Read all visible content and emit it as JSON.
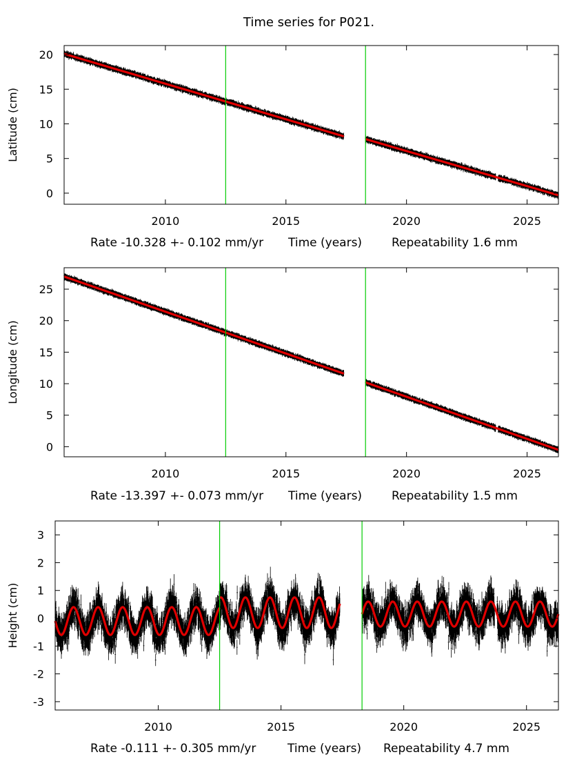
{
  "title": "Time series for P021.",
  "colors": {
    "data": "#000000",
    "model": "#e00000",
    "breaks": "#00cc00",
    "frame": "#000000"
  },
  "chart_data": [
    {
      "type": "scatter",
      "ylabel": "Latitude (cm)",
      "xlim": [
        2005.8,
        2026.3
      ],
      "ylim": [
        -1.6,
        21.3
      ],
      "xticks": [
        2010,
        2015,
        2020,
        2025
      ],
      "yticks": [
        0,
        5,
        10,
        15,
        20
      ],
      "x_caption": {
        "rate": "Rate -10.328 +- 0.102 mm/yr",
        "axis": "Time (years)",
        "repeatability": "Repeatability 1.6 mm"
      },
      "breaks": [
        2012.5,
        2018.3
      ],
      "gaps": [
        [
          2017.4,
          2018.25
        ],
        [
          2023.7,
          2023.8
        ]
      ],
      "model_segments": [
        {
          "x": [
            2005.8,
            2017.4
          ],
          "y": [
            20.1,
            8.2
          ]
        },
        {
          "x": [
            2018.3,
            2026.3
          ],
          "y": [
            7.8,
            -0.3
          ]
        }
      ],
      "series": [
        {
          "name": "Latitude",
          "scatter_cm": 0.3
        }
      ]
    },
    {
      "type": "scatter",
      "ylabel": "Longitude (cm)",
      "xlim": [
        2005.8,
        2026.3
      ],
      "ylim": [
        -1.6,
        28.4
      ],
      "xticks": [
        2010,
        2015,
        2020,
        2025
      ],
      "yticks": [
        0,
        5,
        10,
        15,
        20,
        25
      ],
      "x_caption": {
        "rate": "Rate -13.397 +- 0.073 mm/yr",
        "axis": "Time (years)",
        "repeatability": "Repeatability 1.5 mm"
      },
      "breaks": [
        2012.5,
        2018.3
      ],
      "gaps": [
        [
          2017.4,
          2018.25
        ],
        [
          2023.7,
          2023.8
        ]
      ],
      "model_segments": [
        {
          "x": [
            2005.8,
            2017.4
          ],
          "y": [
            27.0,
            11.6
          ]
        },
        {
          "x": [
            2018.3,
            2026.3
          ],
          "y": [
            10.2,
            -0.5
          ]
        }
      ],
      "series": [
        {
          "name": "Longitude",
          "scatter_cm": 0.25
        }
      ]
    },
    {
      "type": "scatter",
      "ylabel": "Height (cm)",
      "xlim": [
        2005.8,
        2026.3
      ],
      "ylim": [
        -3.3,
        3.5
      ],
      "xticks": [
        2010,
        2015,
        2020,
        2025
      ],
      "yticks": [
        -3,
        -2,
        -1,
        0,
        1,
        2,
        3
      ],
      "x_caption": {
        "rate": "Rate -0.111 +- 0.305 mm/yr",
        "axis": "Time (years)",
        "repeatability": "Repeatability 4.7 mm"
      },
      "breaks": [
        2012.5,
        2018.3
      ],
      "gaps": [
        [
          2017.4,
          2018.25
        ],
        [
          2023.7,
          2023.8
        ]
      ],
      "model_segments": [
        {
          "x": [
            2005.8,
            2012.5
          ],
          "offset": -0.1,
          "amplitude": 0.5
        },
        {
          "x": [
            2012.5,
            2017.4
          ],
          "offset": 0.2,
          "amplitude": 0.55
        },
        {
          "x": [
            2018.3,
            2026.3
          ],
          "offset": 0.15,
          "amplitude": 0.45
        }
      ],
      "series": [
        {
          "name": "Height",
          "scatter_cm": 0.6
        }
      ]
    }
  ]
}
